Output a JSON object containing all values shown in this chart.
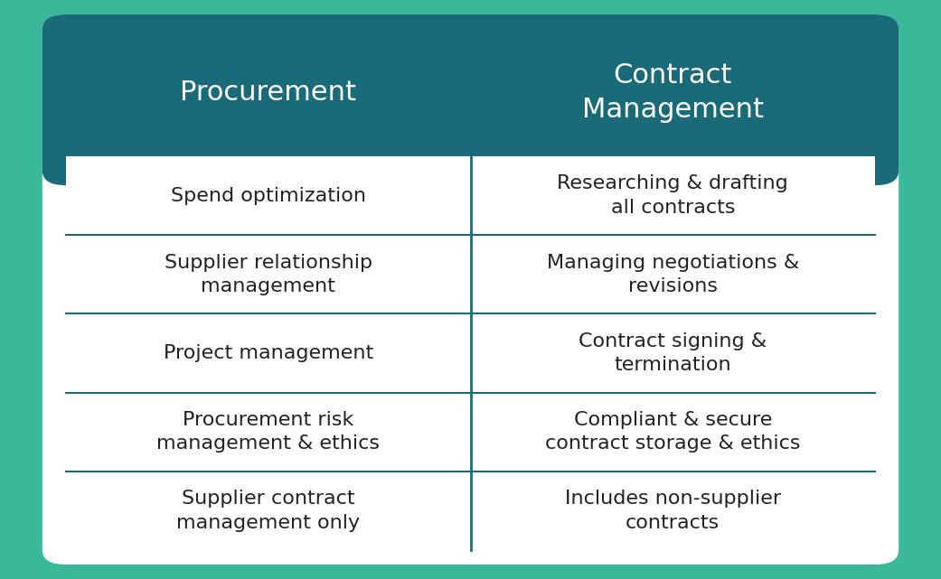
{
  "background_color": "#3ab89a",
  "table_bg": "#ffffff",
  "header_bg": "#1a6b7a",
  "header_text_color": "#ffffff",
  "cell_text_color": "#222222",
  "divider_color": "#1a6b7a",
  "col1_header": "Procurement",
  "col2_header": "Contract\nManagement",
  "rows": [
    [
      "Spend optimization",
      "Researching & drafting\nall contracts"
    ],
    [
      "Supplier relationship\nmanagement",
      "Managing negotiations &\nrevisions"
    ],
    [
      "Project management",
      "Contract signing &\ntermination"
    ],
    [
      "Procurement risk\nmanagement & ethics",
      "Compliant & secure\ncontract storage & ethics"
    ],
    [
      "Supplier contract\nmanagement only",
      "Includes non-supplier\ncontracts"
    ]
  ],
  "header_fontsize": 22,
  "cell_fontsize": 16,
  "figsize": [
    10.41,
    6.41
  ],
  "dpi": 100
}
